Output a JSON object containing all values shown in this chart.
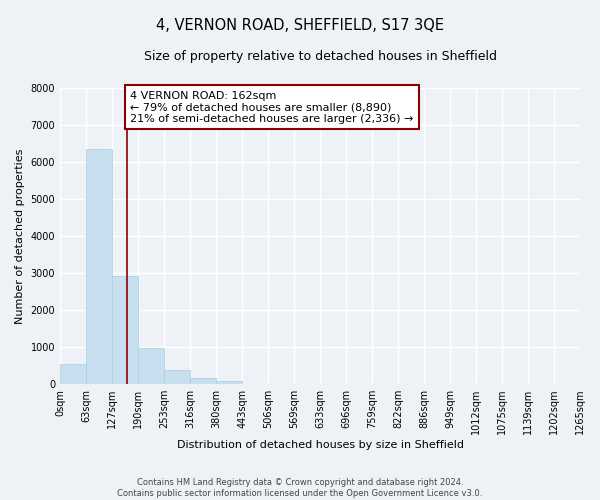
{
  "title": "4, VERNON ROAD, SHEFFIELD, S17 3QE",
  "subtitle": "Size of property relative to detached houses in Sheffield",
  "xlabel": "Distribution of detached houses by size in Sheffield",
  "ylabel": "Number of detached properties",
  "bar_edges": [
    0,
    63,
    127,
    190,
    253,
    316,
    380,
    443,
    506,
    569,
    633,
    696,
    759,
    822,
    886,
    949,
    1012,
    1075,
    1139,
    1202,
    1265
  ],
  "bar_heights": [
    550,
    6350,
    2920,
    980,
    390,
    175,
    95,
    0,
    0,
    0,
    0,
    0,
    0,
    0,
    0,
    0,
    0,
    0,
    0,
    0
  ],
  "bar_color": "#c8dff0",
  "bar_edgecolor": "#aacce0",
  "vline_x": 162,
  "vline_color": "#8b0000",
  "annotation_line1": "4 VERNON ROAD: 162sqm",
  "annotation_line2": "← 79% of detached houses are smaller (8,890)",
  "annotation_line3": "21% of semi-detached houses are larger (2,336) →",
  "annotation_box_color": "white",
  "annotation_box_edgecolor": "#8b0000",
  "ylim": [
    0,
    8000
  ],
  "yticks": [
    0,
    1000,
    2000,
    3000,
    4000,
    5000,
    6000,
    7000,
    8000
  ],
  "tick_labels": [
    "0sqm",
    "63sqm",
    "127sqm",
    "190sqm",
    "253sqm",
    "316sqm",
    "380sqm",
    "443sqm",
    "506sqm",
    "569sqm",
    "633sqm",
    "696sqm",
    "759sqm",
    "822sqm",
    "886sqm",
    "949sqm",
    "1012sqm",
    "1075sqm",
    "1139sqm",
    "1202sqm",
    "1265sqm"
  ],
  "footer_line1": "Contains HM Land Registry data © Crown copyright and database right 2024.",
  "footer_line2": "Contains public sector information licensed under the Open Government Licence v3.0.",
  "bg_color": "#eef2f7",
  "grid_color": "white",
  "title_fontsize": 10.5,
  "subtitle_fontsize": 9,
  "axis_label_fontsize": 8,
  "tick_fontsize": 7,
  "annotation_fontsize": 8,
  "footer_fontsize": 6
}
